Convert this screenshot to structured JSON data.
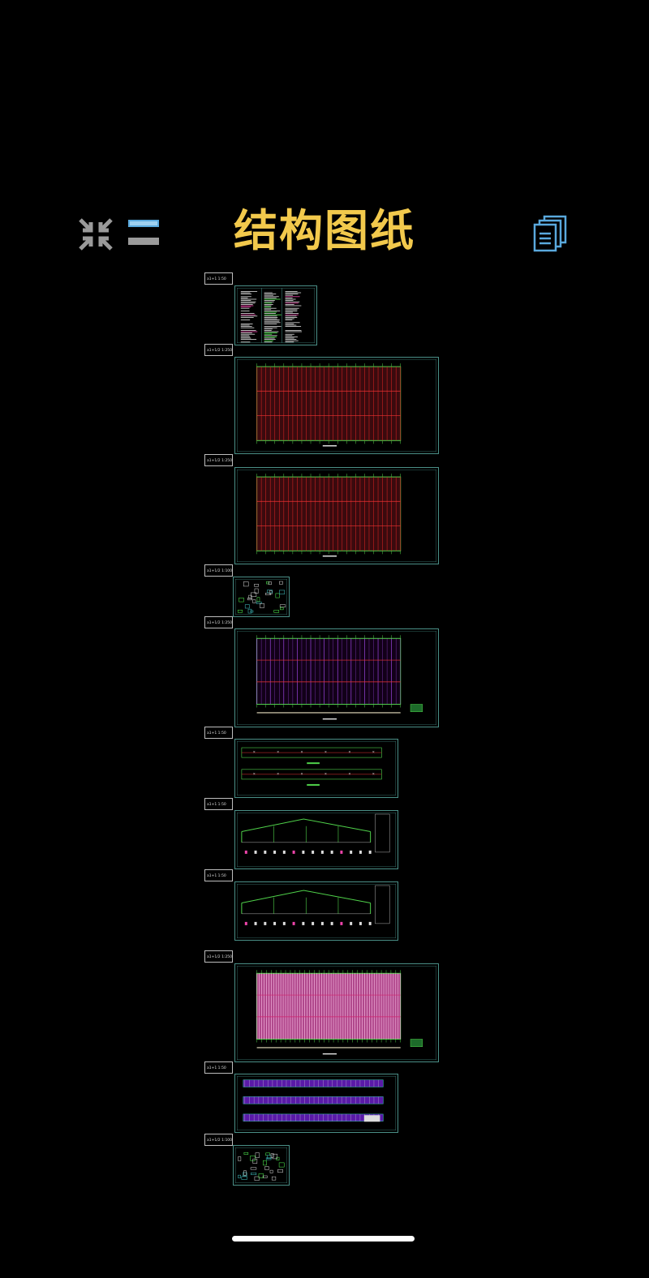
{
  "header": {
    "title": "结构图纸",
    "left_icons": [
      "collapse-arrows-icon",
      "menu-lines-icon"
    ],
    "right_icon": "document-stack-icon",
    "colors": {
      "title": "#f2c94c",
      "icon_gray": "#9a9a9a",
      "icon_blue": "#5aa9dd",
      "sheet_border": "#4a8f87"
    }
  },
  "sheets": [
    {
      "label": "a1+1 1:50",
      "style": "notes"
    },
    {
      "label": "a1+1/2 1:250",
      "style": "plan-red"
    },
    {
      "label": "a1+1/2 1:250",
      "style": "plan-red"
    },
    {
      "label": "a1+1/2 1:100",
      "style": "details"
    },
    {
      "label": "a1+1/2 1:250",
      "style": "plan-purple"
    },
    {
      "label": "a1+1 1:50",
      "style": "elevation"
    },
    {
      "label": "a1+1 1:50",
      "style": "frame"
    },
    {
      "label": "a1+1 1:50",
      "style": "frame"
    },
    {
      "label": "a1+1/2 1:250",
      "style": "plan-pink"
    },
    {
      "label": "a1+1 1:50",
      "style": "strips"
    },
    {
      "label": "a1+1/2 1:100",
      "style": "details"
    }
  ]
}
